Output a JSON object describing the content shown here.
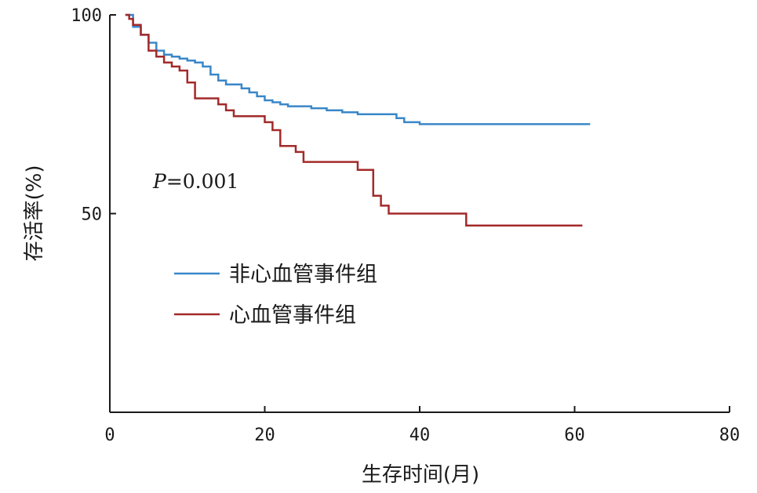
{
  "chart_data": {
    "type": "line",
    "step": true,
    "xlabel": "生存时间(月)",
    "ylabel": "存活率(%)",
    "xlim": [
      0,
      80
    ],
    "ylim": [
      0,
      100
    ],
    "x_ticks": [
      "0",
      "20",
      "40",
      "60",
      "80"
    ],
    "y_ticks": [
      "50",
      "100"
    ],
    "grid": false,
    "legend_position": "center-left",
    "annotation": {
      "italic": "P",
      "rest": "=0.001"
    },
    "series": [
      {
        "name": "非心血管事件组",
        "color": "#3a87c8",
        "points": [
          [
            2,
            100
          ],
          [
            3,
            97
          ],
          [
            4,
            95
          ],
          [
            5,
            93
          ],
          [
            6,
            91
          ],
          [
            7,
            90
          ],
          [
            8,
            89.5
          ],
          [
            9,
            89
          ],
          [
            10,
            88.5
          ],
          [
            11,
            88
          ],
          [
            12,
            87
          ],
          [
            13,
            85
          ],
          [
            14,
            83.5
          ],
          [
            15,
            82.5
          ],
          [
            17,
            81.5
          ],
          [
            18,
            80.5
          ],
          [
            19,
            79.5
          ],
          [
            20,
            78.5
          ],
          [
            21,
            78
          ],
          [
            22,
            77.5
          ],
          [
            23,
            77
          ],
          [
            26,
            76.5
          ],
          [
            28,
            76
          ],
          [
            30,
            75.5
          ],
          [
            32,
            75
          ],
          [
            37,
            74
          ],
          [
            38,
            73
          ],
          [
            40,
            72.5
          ],
          [
            62,
            72.5
          ]
        ]
      },
      {
        "name": "心血管事件组",
        "color": "#a32a2a",
        "points": [
          [
            2,
            100
          ],
          [
            2.5,
            99
          ],
          [
            3,
            97.5
          ],
          [
            4,
            95
          ],
          [
            5,
            91
          ],
          [
            6,
            89.5
          ],
          [
            7,
            88
          ],
          [
            8,
            87
          ],
          [
            9,
            86
          ],
          [
            10,
            83
          ],
          [
            11,
            79
          ],
          [
            14,
            77.5
          ],
          [
            15,
            76
          ],
          [
            16,
            74.5
          ],
          [
            20,
            73
          ],
          [
            21,
            71
          ],
          [
            22,
            67
          ],
          [
            24,
            65.5
          ],
          [
            25,
            63
          ],
          [
            32,
            61
          ],
          [
            34,
            54.5
          ],
          [
            35,
            52
          ],
          [
            36,
            50
          ],
          [
            46,
            47
          ],
          [
            61,
            47
          ]
        ]
      }
    ]
  }
}
